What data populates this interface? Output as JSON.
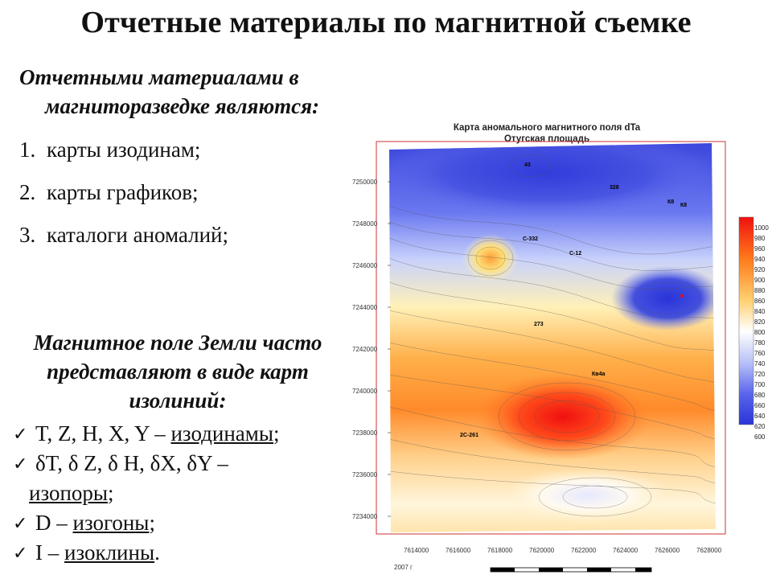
{
  "slide": {
    "title": "Отчетные материалы по магнитной съемке",
    "intro_line1": "Отчетными материалами в",
    "intro_line2": "магниторазведке являются:",
    "list": [
      {
        "num": "1.",
        "text": "карты изодинам;"
      },
      {
        "num": "2.",
        "text": "карты графиков;"
      },
      {
        "num": "3.",
        "text": "каталоги аномалий;"
      }
    ],
    "earth_heading": "Магнитное поле Земли часто представляют в виде карт изолиний:",
    "checks": {
      "row1_lead": "T, Z, H, X, Y – ",
      "row1_term": "изодинамы",
      "row1_end": ";",
      "row2_lead": "δT, δ Z, δ H, δX, δY –",
      "row2_term": "изопоры",
      "row2_end": ";",
      "row3_lead": "D – ",
      "row3_term": "изогоны",
      "row3_end": ";",
      "row4_lead": "I – ",
      "row4_term": "изоклины",
      "row4_end": "."
    }
  },
  "map": {
    "title_line1": "Карта аномального магнитного поля dTa",
    "title_line2": "Отугская площадь",
    "y_ticks": [
      "7250000",
      "7248000",
      "7246000",
      "7244000",
      "7242000",
      "7240000",
      "7238000",
      "7236000",
      "7234000"
    ],
    "x_ticks": [
      "7614000",
      "7616000",
      "7618000",
      "7620000",
      "7622000",
      "7624000",
      "7626000",
      "7628000"
    ],
    "year": "2007 г",
    "point_labels": [
      "43",
      "328",
      "К8",
      "К8",
      "С-332",
      "С-12",
      "273",
      "Кв4а",
      "2С-261"
    ],
    "colorbar_values": [
      "1000",
      "980",
      "960",
      "940",
      "920",
      "900",
      "880",
      "860",
      "840",
      "820",
      "800",
      "780",
      "760",
      "740",
      "720",
      "700",
      "680",
      "660",
      "640",
      "620",
      "600"
    ],
    "colors": {
      "high": "#f01010",
      "mid": "#ffffff",
      "low": "#2a34d8",
      "frame": "#cc3333"
    }
  }
}
